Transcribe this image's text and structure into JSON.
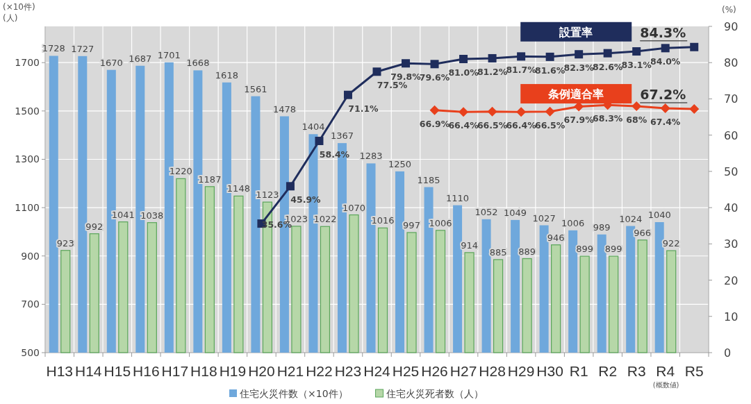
{
  "chart_data": {
    "type": "bar",
    "categories": [
      "H13",
      "H14",
      "H15",
      "H16",
      "H17",
      "H18",
      "H19",
      "H20",
      "H21",
      "H22",
      "H23",
      "H24",
      "H25",
      "H26",
      "H27",
      "H28",
      "H29",
      "H30",
      "R1",
      "R2",
      "R3",
      "R4",
      "R5"
    ],
    "ylim": [
      500,
      1850
    ],
    "yticks": [
      500,
      700,
      900,
      1100,
      1300,
      1500,
      1700
    ],
    "y2lim": [
      0,
      90
    ],
    "y2ticks": [
      0,
      10,
      20,
      30,
      40,
      50,
      60,
      70,
      80,
      90
    ],
    "grid": true,
    "legend": "bottom",
    "data_labels": true,
    "annotations": [
      "(×10件)",
      "(人)",
      "(%)",
      "(概数値)"
    ],
    "series": [
      {
        "name": "住宅火災件数（×10件）",
        "color": "#6fa8dc",
        "values": [
          1728,
          1727,
          1670,
          1687,
          1701,
          1668,
          1618,
          1561,
          1478,
          1404,
          1367,
          1283,
          1250,
          1185,
          1110,
          1052,
          1049,
          1027,
          1006,
          989,
          1024,
          1040,
          null
        ]
      },
      {
        "name": "住宅火災死者数（人）",
        "color": "#b6d7a8",
        "values": [
          923,
          992,
          1041,
          1038,
          1220,
          1187,
          1148,
          1123,
          1023,
          1022,
          1070,
          1016,
          997,
          1006,
          914,
          885,
          889,
          946,
          899,
          899,
          966,
          922,
          null
        ]
      },
      {
        "name": "設置率",
        "type": "line",
        "axis": "y2",
        "marker": "square",
        "color": "#1f2d5c",
        "values": [
          null,
          null,
          null,
          null,
          null,
          null,
          null,
          35.6,
          45.9,
          58.4,
          71.1,
          77.5,
          79.8,
          79.6,
          81.0,
          81.2,
          81.7,
          81.6,
          82.3,
          82.6,
          83.1,
          84.0,
          84.3
        ],
        "value_labels": [
          null,
          null,
          null,
          null,
          null,
          null,
          null,
          "35.6%",
          "45.9%",
          "58.4%",
          "71.1%",
          "77.5%",
          "79.8%",
          "79.6%",
          "81.0%",
          "81.2%",
          "81.7%",
          "81.6%",
          "82.3%",
          "82.6%",
          "83.1%",
          "84.0%",
          "84.3%"
        ]
      },
      {
        "name": "条例適合率",
        "type": "line",
        "axis": "y2",
        "marker": "diamond",
        "color": "#e8401c",
        "values": [
          null,
          null,
          null,
          null,
          null,
          null,
          null,
          null,
          null,
          null,
          null,
          null,
          null,
          66.9,
          66.4,
          66.5,
          66.4,
          66.5,
          67.9,
          68.3,
          68,
          67.4,
          67.2
        ],
        "value_labels": [
          null,
          null,
          null,
          null,
          null,
          null,
          null,
          null,
          null,
          null,
          null,
          null,
          null,
          "66.9%",
          "66.4%",
          "66.5%",
          "66.4%",
          "66.5%",
          "67.9%",
          "68.3%",
          "68%",
          "67.4%",
          "67.2%"
        ]
      }
    ]
  }
}
